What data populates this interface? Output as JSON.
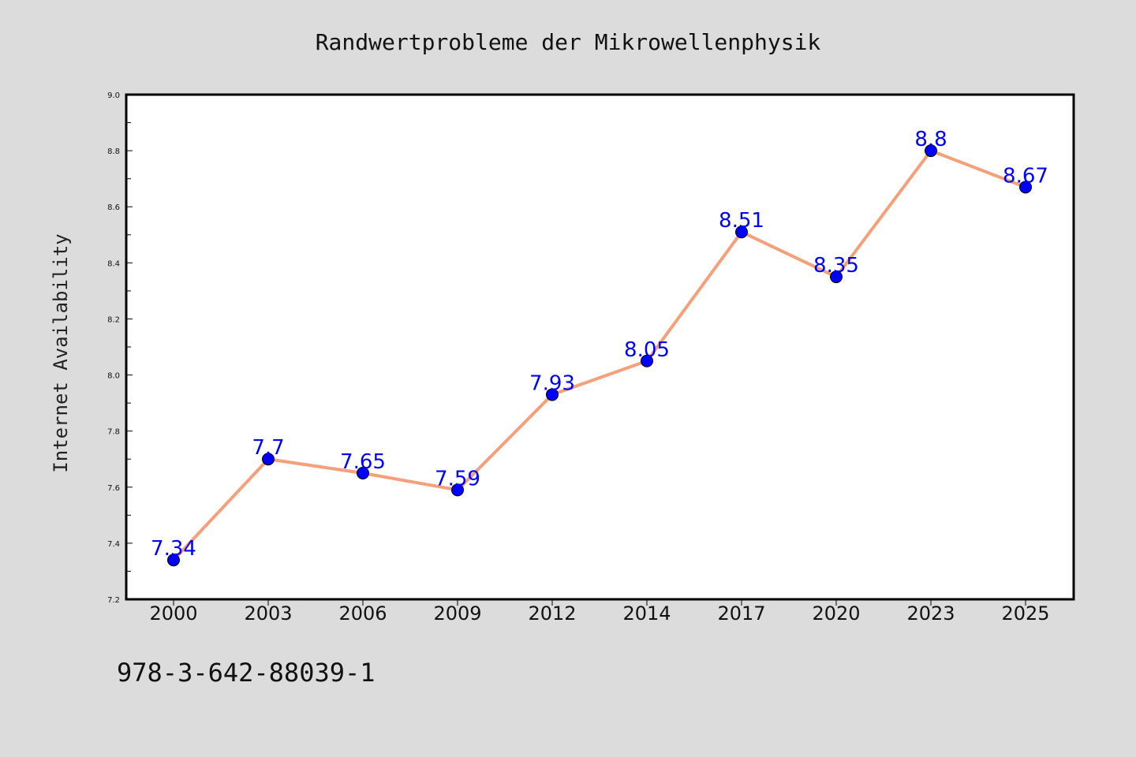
{
  "chart_data": {
    "type": "line",
    "title": "Randwertprobleme der Mikrowellenphysik",
    "ylabel": "Internet Availability",
    "footer": "978-3-642-88039-1",
    "categories": [
      "2000",
      "2003",
      "2006",
      "2009",
      "2012",
      "2014",
      "2017",
      "2020",
      "2023",
      "2025"
    ],
    "series": [
      {
        "values": [
          7.34,
          7.7,
          7.65,
          7.59,
          7.93,
          8.05,
          8.51,
          8.35,
          8.8,
          8.67
        ],
        "value_labels": [
          "7.34",
          "7.7",
          "7.65",
          "7.59",
          "7.93",
          "8.05",
          "8.51",
          "8.35",
          "8.8",
          "8.67"
        ],
        "line_color": "#f4a07a",
        "marker_color": "#0000ff"
      }
    ],
    "ylim": [
      7.2,
      9.0
    ],
    "yticks": [
      "7.2",
      "7.4",
      "7.6",
      "7.8",
      "8.0",
      "8.2",
      "8.4",
      "8.6",
      "8.8",
      "9.0"
    ],
    "grid": false,
    "label_color": "#0000ff",
    "background_color": "#dcdcdc",
    "plot_background": "#ffffff"
  }
}
